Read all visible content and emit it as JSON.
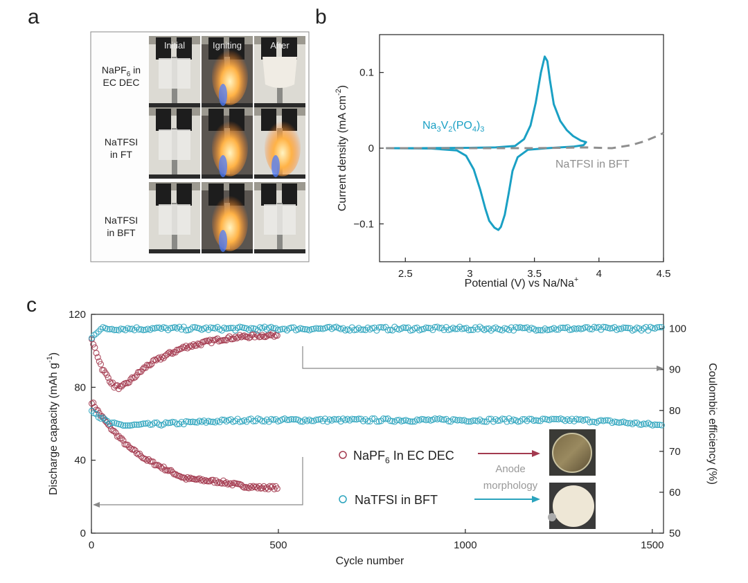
{
  "panel_letters": {
    "a": "a",
    "b": "b",
    "c": "c"
  },
  "panel_a": {
    "column_headers": [
      "Initial",
      "Igniting",
      "After"
    ],
    "row_labels": [
      {
        "line1": "NaPF",
        "sub": "6",
        "line1_suffix": " in",
        "line2": "EC DEC"
      },
      {
        "line1": "NaTFSI",
        "sub": "",
        "line1_suffix": "",
        "line2": "in FT"
      },
      {
        "line1": "NaTFSI",
        "sub": "",
        "line1_suffix": "",
        "line2": "in BFT"
      }
    ],
    "flame": [
      {
        "initial": "intact",
        "igniting": "burning",
        "after": "burnt"
      },
      {
        "initial": "intact",
        "igniting": "burning",
        "after": "burning"
      },
      {
        "initial": "intact",
        "igniting": "burning",
        "after": "intact"
      }
    ]
  },
  "chart_data": [
    {
      "panel": "b",
      "type": "line",
      "xlabel": "Potential (V) vs Na/Na",
      "xlabel_sup": "+",
      "ylabel_main": "Current density (mA cm",
      "ylabel_sup": "-2",
      "ylabel_end": ")",
      "xlim": [
        2.3,
        4.5
      ],
      "ylim": [
        -0.15,
        0.15
      ],
      "xticks": [
        2.5,
        3,
        3.5,
        4,
        4.5
      ],
      "xtick_labels": [
        "2.5",
        "3",
        "3.5",
        "4",
        "4.5"
      ],
      "yticks": [
        0.1,
        0,
        -0.1
      ],
      "ytick_labels": [
        "0.1",
        "0",
        "−0.1"
      ],
      "series": [
        {
          "name": "Na3V2(PO4)3",
          "label_parts": [
            "Na",
            "3",
            "V",
            "2",
            "(PO",
            "4",
            ")",
            "3"
          ],
          "color": "#1aa0c4",
          "style": "solid",
          "forward": [
            [
              2.35,
              0
            ],
            [
              2.6,
              0.0
            ],
            [
              3.0,
              0.0005
            ],
            [
              3.2,
              0.001
            ],
            [
              3.35,
              0.003
            ],
            [
              3.42,
              0.012
            ],
            [
              3.47,
              0.03
            ],
            [
              3.51,
              0.06
            ],
            [
              3.55,
              0.1
            ],
            [
              3.58,
              0.121
            ],
            [
              3.6,
              0.115
            ],
            [
              3.62,
              0.09
            ],
            [
              3.65,
              0.058
            ],
            [
              3.7,
              0.036
            ],
            [
              3.75,
              0.024
            ],
            [
              3.8,
              0.016
            ],
            [
              3.86,
              0.01
            ],
            [
              3.9,
              0.008
            ]
          ],
          "reverse": [
            [
              3.9,
              0.008
            ],
            [
              3.88,
              0.004
            ],
            [
              3.8,
              0.002
            ],
            [
              3.6,
              0.0
            ],
            [
              3.45,
              -0.002
            ],
            [
              3.37,
              -0.012
            ],
            [
              3.33,
              -0.03
            ],
            [
              3.3,
              -0.06
            ],
            [
              3.27,
              -0.088
            ],
            [
              3.24,
              -0.104
            ],
            [
              3.22,
              -0.108
            ],
            [
              3.19,
              -0.105
            ],
            [
              3.15,
              -0.096
            ],
            [
              3.12,
              -0.08
            ],
            [
              3.08,
              -0.055
            ],
            [
              3.03,
              -0.028
            ],
            [
              2.97,
              -0.01
            ],
            [
              2.9,
              -0.003
            ],
            [
              2.7,
              -0.0005
            ],
            [
              2.35,
              0
            ]
          ]
        },
        {
          "name": "NaTFSI in BFT",
          "color": "#8f8f8f",
          "style": "dashed",
          "points": [
            [
              2.35,
              0
            ],
            [
              3.0,
              0
            ],
            [
              3.5,
              0
            ],
            [
              3.9,
              0.001
            ],
            [
              4.1,
              0.0
            ],
            [
              4.25,
              0.004
            ],
            [
              4.35,
              0.009
            ],
            [
              4.45,
              0.016
            ],
            [
              4.5,
              0.02
            ]
          ]
        }
      ]
    },
    {
      "panel": "c",
      "type": "scatter",
      "xlabel": "Cycle number",
      "ylabel_left_main": "Discharge capacity (mAh g",
      "ylabel_left_sup": "-1",
      "ylabel_left_end": ")",
      "ylabel_right": "Coulombic efficiency (%)",
      "xlim": [
        0,
        1530
      ],
      "ylim_left": [
        0,
        120
      ],
      "ylim_right": [
        50,
        103.5
      ],
      "xticks": [
        0,
        500,
        1000,
        1500
      ],
      "xtick_labels": [
        "0",
        "500",
        "1000",
        "1500"
      ],
      "yticks_left": [
        0,
        40,
        80,
        120
      ],
      "ytick_labels_left": [
        "0",
        "40",
        "80",
        "120"
      ],
      "yticks_right": [
        50,
        60,
        70,
        80,
        90,
        100
      ],
      "ytick_labels_right": [
        "50",
        "60",
        "70",
        "80",
        "90",
        "100"
      ],
      "legend": [
        {
          "text_main": "NaPF",
          "text_sub": "6",
          "text_end": " In EC DEC",
          "color": "#a33a4f"
        },
        {
          "text_main": "NaTFSI in BFT",
          "text_sub": "",
          "text_end": "",
          "color": "#2aa3bd"
        }
      ],
      "annotation": {
        "line1": "Anode",
        "line2": "morphology"
      },
      "series": [
        {
          "name": "NaPF6 capacity",
          "axis": "left",
          "color": "#a33a4f",
          "x_range": [
            1,
            500
          ],
          "key_points": [
            [
              1,
              72
            ],
            [
              20,
              66
            ],
            [
              50,
              58
            ],
            [
              100,
              47
            ],
            [
              150,
              40
            ],
            [
              200,
              35
            ],
            [
              250,
              30
            ],
            [
              300,
              29
            ],
            [
              350,
              28
            ],
            [
              400,
              26
            ],
            [
              450,
              25
            ],
            [
              500,
              25
            ]
          ]
        },
        {
          "name": "NaPF6 CE",
          "axis": "right",
          "color": "#a33a4f",
          "x_range": [
            1,
            500
          ],
          "key_points": [
            [
              1,
              97
            ],
            [
              10,
              95
            ],
            [
              30,
              90
            ],
            [
              60,
              86
            ],
            [
              80,
              85.5
            ],
            [
              100,
              87
            ],
            [
              150,
              91
            ],
            [
              200,
              93.5
            ],
            [
              250,
              95.5
            ],
            [
              300,
              96.5
            ],
            [
              350,
              97.5
            ],
            [
              400,
              98
            ],
            [
              450,
              98.3
            ],
            [
              500,
              98.5
            ]
          ]
        },
        {
          "name": "NaTFSI capacity",
          "axis": "left",
          "color": "#2aa3bd",
          "x_range": [
            1,
            1530
          ],
          "key_points": [
            [
              1,
              68
            ],
            [
              20,
              64
            ],
            [
              50,
              60
            ],
            [
              100,
              59
            ],
            [
              200,
              60
            ],
            [
              300,
              61
            ],
            [
              400,
              62
            ],
            [
              600,
              62
            ],
            [
              800,
              62
            ],
            [
              1000,
              62
            ],
            [
              1200,
              62
            ],
            [
              1300,
              62
            ],
            [
              1400,
              61
            ],
            [
              1530,
              59
            ]
          ]
        },
        {
          "name": "NaTFSI CE",
          "axis": "right",
          "color": "#2aa3bd",
          "x_range": [
            1,
            1530
          ],
          "key_points": [
            [
              1,
              98
            ],
            [
              10,
              99
            ],
            [
              30,
              100
            ],
            [
              100,
              100
            ],
            [
              500,
              100
            ],
            [
              1000,
              100
            ],
            [
              1530,
              100
            ]
          ]
        }
      ]
    }
  ]
}
